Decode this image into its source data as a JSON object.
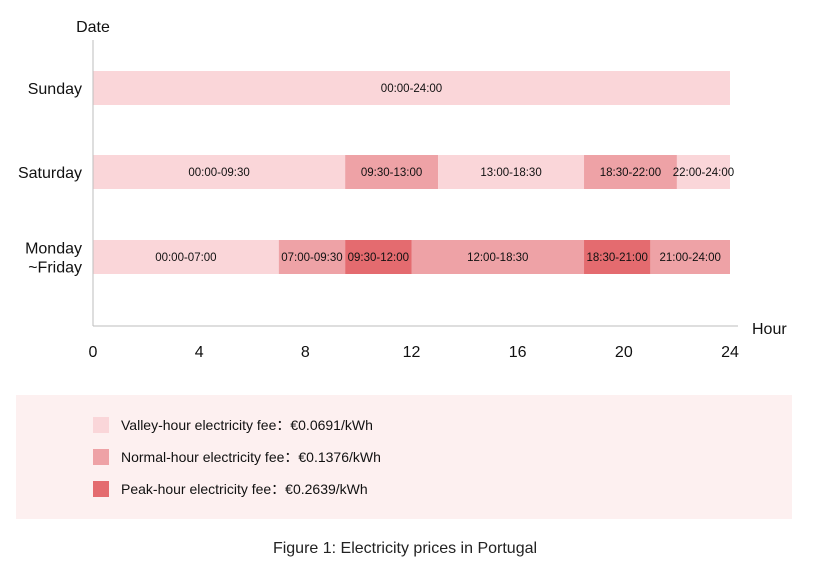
{
  "chart_data": {
    "type": "bar",
    "subtype": "horizontal-timeline",
    "xlabel": "Hour",
    "ylabel": "Date",
    "xlim": [
      0,
      24
    ],
    "xticks": [
      0,
      4,
      8,
      12,
      16,
      20,
      24
    ],
    "grid": false,
    "legend_position": "bottom",
    "colors": {
      "valley": "#fad6d9",
      "normal": "#eea2a6",
      "peak": "#e46b6f",
      "legend_bg": "#fdf0f0",
      "axis": "#bdbdbd"
    },
    "categories": [
      "Sunday",
      "Saturday",
      "Monday\n~Friday"
    ],
    "rows": [
      {
        "label_lines": [
          "Sunday"
        ],
        "segments": [
          {
            "start": 0,
            "end": 24,
            "tier": "valley",
            "label": "00:00-24:00"
          }
        ]
      },
      {
        "label_lines": [
          "Saturday"
        ],
        "segments": [
          {
            "start": 0,
            "end": 9.5,
            "tier": "valley",
            "label": "00:00-09:30"
          },
          {
            "start": 9.5,
            "end": 13,
            "tier": "normal",
            "label": "09:30-13:00"
          },
          {
            "start": 13,
            "end": 18.5,
            "tier": "valley",
            "label": "13:00-18:30"
          },
          {
            "start": 18.5,
            "end": 22,
            "tier": "normal",
            "label": "18:30-22:00"
          },
          {
            "start": 22,
            "end": 24,
            "tier": "valley",
            "label": "22:00-24:00"
          }
        ]
      },
      {
        "label_lines": [
          "Monday",
          "~Friday"
        ],
        "segments": [
          {
            "start": 0,
            "end": 7,
            "tier": "valley",
            "label": "00:00-07:00"
          },
          {
            "start": 7,
            "end": 9.5,
            "tier": "normal",
            "label": "07:00-09:30"
          },
          {
            "start": 9.5,
            "end": 12,
            "tier": "peak",
            "label": "09:30-12:00"
          },
          {
            "start": 12,
            "end": 18.5,
            "tier": "normal",
            "label": "12:00-18:30"
          },
          {
            "start": 18.5,
            "end": 21,
            "tier": "peak",
            "label": "18:30-21:00"
          },
          {
            "start": 21,
            "end": 24,
            "tier": "normal",
            "label": "21:00-24:00"
          }
        ]
      }
    ],
    "legend": [
      {
        "tier": "valley",
        "name": "Valley-hour electricity fee：€0.0691/kWh",
        "price_eur_per_kwh": 0.0691
      },
      {
        "tier": "normal",
        "name": "Normal-hour electricity fee：€0.1376/kWh",
        "price_eur_per_kwh": 0.1376
      },
      {
        "tier": "peak",
        "name": "Peak-hour electricity fee：€0.2639/kWh",
        "price_eur_per_kwh": 0.2639
      }
    ]
  },
  "caption": "Figure 1: Electricity prices in Portugal"
}
